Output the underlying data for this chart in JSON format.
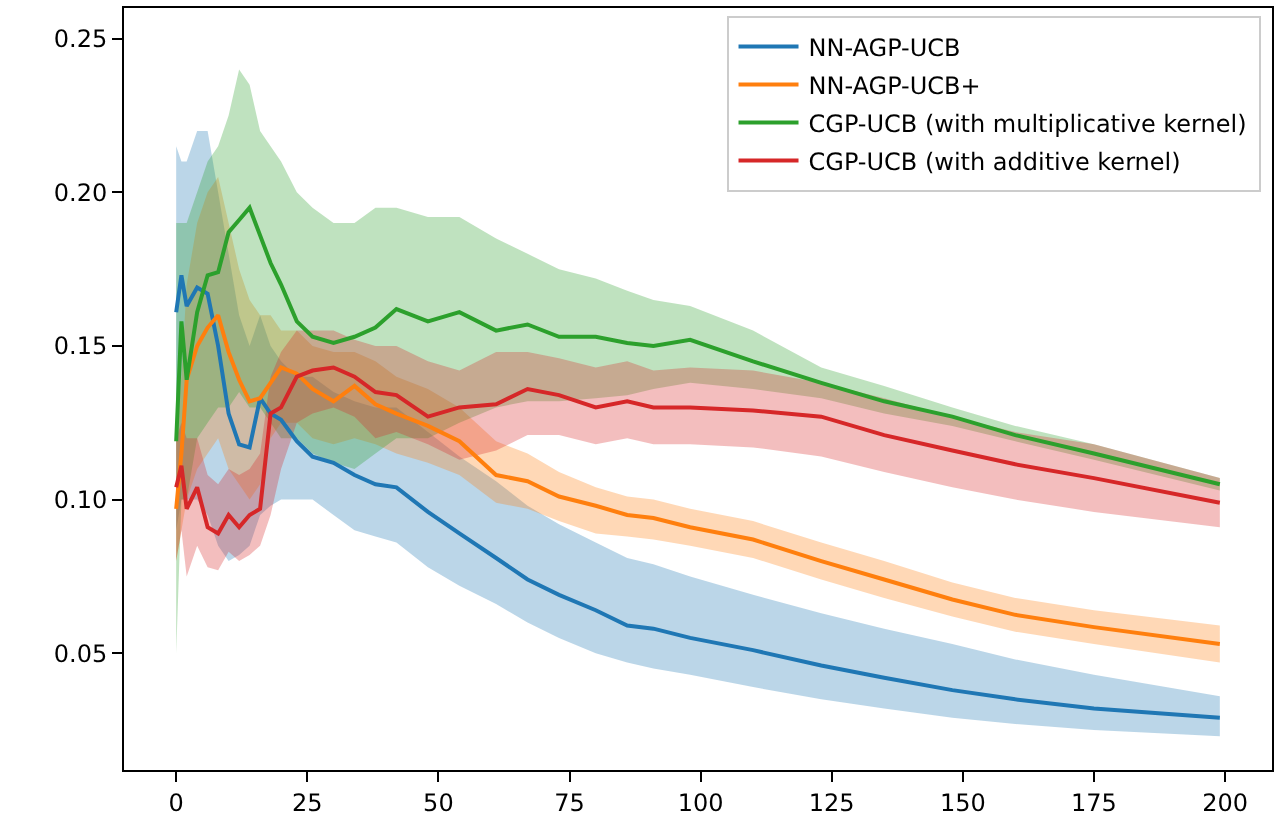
{
  "chart_data": {
    "type": "line",
    "x": [
      0,
      1,
      2,
      4,
      6,
      8,
      10,
      12,
      14,
      16,
      18,
      20,
      23,
      26,
      30,
      34,
      38,
      42,
      48,
      54,
      61,
      67,
      73,
      80,
      86,
      91,
      98,
      110,
      123,
      135,
      148,
      160,
      175,
      199
    ],
    "xlim": [
      -9.95,
      208.95
    ],
    "xticks": [
      0,
      25,
      50,
      75,
      100,
      125,
      150,
      175,
      200
    ],
    "ylim": [
      0.012,
      0.26
    ],
    "yticks": [
      0.05,
      {
        "value": 0.1,
        "label": "0.10"
      },
      0.15,
      {
        "value": 0.2,
        "label": "0.20"
      },
      0.25
    ],
    "grid": false,
    "legend": "top right",
    "line_style": "solid",
    "marker": "none",
    "series": [
      {
        "name": "NN-AGP-UCB",
        "color": "#1f77b4",
        "values": [
          0.161,
          0.173,
          0.163,
          0.169,
          0.167,
          0.15,
          0.128,
          0.118,
          0.117,
          0.133,
          0.128,
          0.126,
          0.119,
          0.114,
          0.112,
          0.108,
          0.105,
          0.104,
          0.096,
          0.089,
          0.081,
          0.074,
          0.069,
          0.064,
          0.059,
          0.058,
          0.055,
          0.051,
          0.046,
          0.042,
          0.038,
          0.035,
          0.032,
          0.029
        ],
        "upper": [
          0.215,
          0.21,
          0.21,
          0.22,
          0.22,
          0.2,
          0.18,
          0.16,
          0.15,
          0.16,
          0.15,
          0.145,
          0.14,
          0.14,
          0.135,
          0.132,
          0.13,
          0.13,
          0.122,
          0.114,
          0.106,
          0.098,
          0.092,
          0.086,
          0.081,
          0.079,
          0.075,
          0.069,
          0.063,
          0.058,
          0.053,
          0.048,
          0.043,
          0.036
        ],
        "lower": [
          0.09,
          0.1,
          0.1,
          0.1,
          0.095,
          0.085,
          0.08,
          0.082,
          0.085,
          0.095,
          0.098,
          0.1,
          0.1,
          0.1,
          0.095,
          0.09,
          0.088,
          0.086,
          0.078,
          0.072,
          0.066,
          0.06,
          0.055,
          0.05,
          0.047,
          0.045,
          0.043,
          0.039,
          0.035,
          0.032,
          0.029,
          0.027,
          0.025,
          0.023
        ]
      },
      {
        "name": "NN-AGP-UCB+",
        "color": "#ff7f0e",
        "values": [
          0.097,
          0.115,
          0.139,
          0.15,
          0.156,
          0.16,
          0.148,
          0.139,
          0.132,
          0.133,
          0.138,
          0.143,
          0.141,
          0.136,
          0.132,
          0.137,
          0.131,
          0.128,
          0.124,
          0.119,
          0.108,
          0.106,
          0.101,
          0.098,
          0.095,
          0.094,
          0.091,
          0.087,
          0.08,
          0.074,
          0.0675,
          0.0625,
          0.0585,
          0.053
        ],
        "upper": [
          0.12,
          0.14,
          0.17,
          0.19,
          0.2,
          0.205,
          0.19,
          0.175,
          0.165,
          0.16,
          0.16,
          0.155,
          0.155,
          0.15,
          0.148,
          0.148,
          0.145,
          0.14,
          0.136,
          0.13,
          0.119,
          0.115,
          0.109,
          0.104,
          0.101,
          0.1,
          0.097,
          0.093,
          0.086,
          0.08,
          0.073,
          0.068,
          0.064,
          0.059
        ],
        "lower": [
          0.08,
          0.09,
          0.1,
          0.11,
          0.115,
          0.12,
          0.11,
          0.105,
          0.1,
          0.105,
          0.12,
          0.125,
          0.125,
          0.12,
          0.118,
          0.12,
          0.118,
          0.115,
          0.112,
          0.108,
          0.099,
          0.097,
          0.093,
          0.089,
          0.088,
          0.087,
          0.085,
          0.081,
          0.074,
          0.068,
          0.062,
          0.057,
          0.053,
          0.047
        ]
      },
      {
        "name": "CGP-UCB (with multiplicative kernel)",
        "color": "#2ca02c",
        "values": [
          0.119,
          0.158,
          0.139,
          0.161,
          0.173,
          0.174,
          0.187,
          0.191,
          0.195,
          0.186,
          0.177,
          0.17,
          0.158,
          0.153,
          0.151,
          0.153,
          0.156,
          0.162,
          0.158,
          0.161,
          0.155,
          0.157,
          0.153,
          0.153,
          0.151,
          0.15,
          0.152,
          0.145,
          0.138,
          0.132,
          0.127,
          0.121,
          0.115,
          0.105
        ],
        "upper": [
          0.19,
          0.19,
          0.19,
          0.2,
          0.21,
          0.215,
          0.225,
          0.24,
          0.235,
          0.22,
          0.215,
          0.21,
          0.2,
          0.195,
          0.19,
          0.19,
          0.195,
          0.195,
          0.192,
          0.192,
          0.185,
          0.18,
          0.175,
          0.172,
          0.168,
          0.165,
          0.163,
          0.155,
          0.143,
          0.137,
          0.13,
          0.124,
          0.118,
          0.107
        ],
        "lower": [
          0.05,
          0.1,
          0.1,
          0.12,
          0.125,
          0.13,
          0.13,
          0.135,
          0.13,
          0.13,
          0.125,
          0.12,
          0.12,
          0.115,
          0.112,
          0.11,
          0.115,
          0.12,
          0.12,
          0.125,
          0.13,
          0.132,
          0.132,
          0.133,
          0.134,
          0.136,
          0.138,
          0.136,
          0.133,
          0.128,
          0.124,
          0.119,
          0.113,
          0.103
        ]
      },
      {
        "name": "CGP-UCB (with additive kernel)",
        "color": "#d62728",
        "values": [
          0.104,
          0.111,
          0.097,
          0.104,
          0.091,
          0.089,
          0.095,
          0.091,
          0.095,
          0.097,
          0.128,
          0.13,
          0.14,
          0.142,
          0.143,
          0.14,
          0.135,
          0.134,
          0.127,
          0.13,
          0.131,
          0.136,
          0.134,
          0.13,
          0.132,
          0.13,
          0.13,
          0.129,
          0.127,
          0.121,
          0.116,
          0.1115,
          0.107,
          0.099
        ],
        "upper": [
          0.12,
          0.125,
          0.12,
          0.12,
          0.108,
          0.105,
          0.11,
          0.108,
          0.11,
          0.115,
          0.14,
          0.148,
          0.155,
          0.155,
          0.155,
          0.152,
          0.15,
          0.15,
          0.145,
          0.142,
          0.148,
          0.148,
          0.146,
          0.143,
          0.145,
          0.142,
          0.143,
          0.142,
          0.138,
          0.133,
          0.127,
          0.122,
          0.118,
          0.107
        ],
        "lower": [
          0.08,
          0.09,
          0.075,
          0.085,
          0.078,
          0.077,
          0.083,
          0.08,
          0.082,
          0.085,
          0.095,
          0.11,
          0.125,
          0.128,
          0.13,
          0.127,
          0.12,
          0.122,
          0.118,
          0.113,
          0.116,
          0.121,
          0.121,
          0.118,
          0.12,
          0.118,
          0.118,
          0.117,
          0.114,
          0.109,
          0.104,
          0.1,
          0.096,
          0.091
        ]
      }
    ]
  }
}
